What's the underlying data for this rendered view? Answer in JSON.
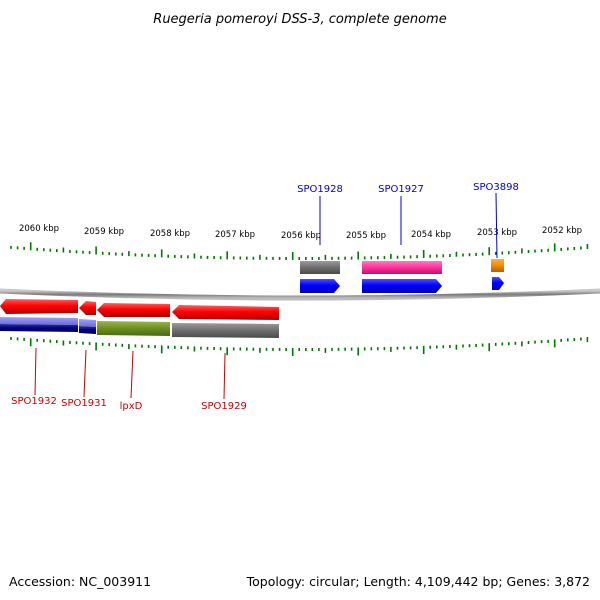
{
  "title": "Ruegeria pomeroyi DSS-3, complete genome",
  "footer": {
    "accession": "Accession: NC_003911",
    "summary": "Topology: circular; Length: 4,109,442 bp; Genes: 3,872"
  },
  "scale_labels": [
    "2060 kbp",
    "2059 kbp",
    "2058 kbp",
    "2057 kbp",
    "2056 kbp",
    "2055 kbp",
    "2054 kbp",
    "2053 kbp",
    "2052 kbp"
  ],
  "genes_forward": [
    {
      "label": "SPO1928",
      "color": "#0000cc"
    },
    {
      "label": "SPO1927",
      "color": "#0000cc"
    },
    {
      "label": "SPO3898",
      "color": "#0000cc"
    }
  ],
  "genes_reverse": [
    {
      "label": "SPO1932",
      "color": "#cc0000"
    },
    {
      "label": "SPO1931",
      "color": "#cc0000"
    },
    {
      "label": "lpxD",
      "color": "#cc0000"
    },
    {
      "label": "SPO1929",
      "color": "#cc0000"
    }
  ],
  "colors": {
    "forward_arrow": "#0000ff",
    "reverse_arrow": "#ff0000",
    "backbone": "#888888",
    "ticks": "#007700",
    "cog_grey": "#6e6e6e",
    "cog_pink": "#ff3399",
    "cog_orange": "#f08c00",
    "cog_navy": "#000080",
    "cog_olive": "#6b8e23"
  }
}
